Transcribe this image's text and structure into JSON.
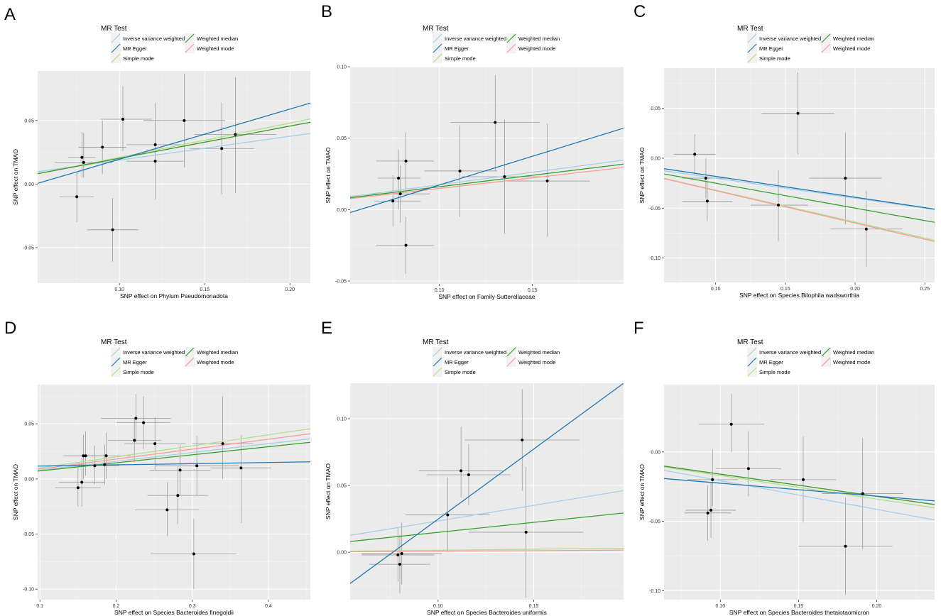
{
  "legend": {
    "title": "MR Test",
    "entries": [
      {
        "name": "Inverse variance weighted",
        "color": "#a6cee3"
      },
      {
        "name": "MR Egger",
        "color": "#1f78b4"
      },
      {
        "name": "Simple mode",
        "color": "#b2df8a"
      },
      {
        "name": "Weighted median",
        "color": "#33a02c"
      },
      {
        "name": "Weighted mode",
        "color": "#fb9a99"
      }
    ]
  },
  "chart_data": [
    {
      "letter": "A",
      "type": "scatter",
      "xlabel": "SNP effect on Phylum Pseudomonadota",
      "ylabel": "SNP effect on TMAO",
      "xlim": [
        0.052,
        0.212
      ],
      "ylim": [
        -0.078,
        0.089
      ],
      "xticks": [
        0.1,
        0.15,
        0.2
      ],
      "xtick_labels": [
        "0.10",
        "0.15",
        "0.20"
      ],
      "yticks": [
        -0.05,
        0.0,
        0.05
      ],
      "ytick_labels": [
        "-0.05",
        "0.00",
        "0.05"
      ],
      "points": [
        {
          "x": 0.075,
          "y": -0.01,
          "xl": 0.065,
          "xh": 0.085,
          "yl": -0.03,
          "yh": 0.01
        },
        {
          "x": 0.078,
          "y": 0.021,
          "xl": 0.07,
          "xh": 0.086,
          "yl": 0.005,
          "yh": 0.041
        },
        {
          "x": 0.079,
          "y": 0.017,
          "xl": 0.062,
          "xh": 0.096,
          "yl": 0.005,
          "yh": 0.04
        },
        {
          "x": 0.09,
          "y": 0.029,
          "xl": 0.076,
          "xh": 0.104,
          "yl": 0.008,
          "yh": 0.05
        },
        {
          "x": 0.096,
          "y": -0.036,
          "xl": 0.081,
          "xh": 0.111,
          "yl": -0.061,
          "yh": -0.011
        },
        {
          "x": 0.102,
          "y": 0.051,
          "xl": 0.089,
          "xh": 0.119,
          "yl": 0.026,
          "yh": 0.077
        },
        {
          "x": 0.121,
          "y": 0.031,
          "xl": 0.104,
          "xh": 0.138,
          "yl": 0.011,
          "yh": 0.064
        },
        {
          "x": 0.121,
          "y": 0.018,
          "xl": 0.104,
          "xh": 0.138,
          "yl": -0.012,
          "yh": 0.048
        },
        {
          "x": 0.138,
          "y": 0.05,
          "xl": 0.114,
          "xh": 0.162,
          "yl": 0.013,
          "yh": 0.087
        },
        {
          "x": 0.16,
          "y": 0.028,
          "xl": 0.141,
          "xh": 0.179,
          "yl": -0.008,
          "yh": 0.064
        },
        {
          "x": 0.168,
          "y": 0.039,
          "xl": 0.144,
          "xh": 0.192,
          "yl": -0.007,
          "yh": 0.084
        }
      ],
      "lines": [
        {
          "method": "Inverse variance weighted",
          "intercept": 0,
          "slope": 0.188
        },
        {
          "method": "MR Egger",
          "intercept": -0.02,
          "slope": 0.395
        },
        {
          "method": "Simple mode",
          "intercept": -0.006,
          "slope": 0.27
        },
        {
          "method": "Weighted median",
          "intercept": -0.005,
          "slope": 0.253
        },
        {
          "method": "Weighted mode",
          "intercept": -0.005,
          "slope": 0.253
        }
      ]
    },
    {
      "letter": "B",
      "type": "scatter",
      "xlabel": "SNP effect on Family Sutterellaceae",
      "ylabel": "SNP effect on TMAO",
      "xlim": [
        0.052,
        0.199
      ],
      "ylim": [
        -0.052,
        0.1
      ],
      "xticks": [
        0.1,
        0.15
      ],
      "xtick_labels": [
        "0.10",
        "0.15"
      ],
      "yticks": [
        -0.05,
        0.0,
        0.05,
        0.1
      ],
      "ytick_labels": [
        "-0.05",
        "0.00",
        "0.05",
        "0.10"
      ],
      "points": [
        {
          "x": 0.075,
          "y": 0.006,
          "xl": 0.065,
          "xh": 0.09,
          "yl": -0.012,
          "yh": 0.024
        },
        {
          "x": 0.078,
          "y": 0.022,
          "xl": 0.067,
          "xh": 0.09,
          "yl": 0.0,
          "yh": 0.042
        },
        {
          "x": 0.079,
          "y": 0.011,
          "xl": 0.063,
          "xh": 0.095,
          "yl": -0.009,
          "yh": 0.031
        },
        {
          "x": 0.082,
          "y": -0.025,
          "xl": 0.066,
          "xh": 0.097,
          "yl": -0.045,
          "yh": -0.005
        },
        {
          "x": 0.082,
          "y": 0.034,
          "xl": 0.066,
          "xh": 0.097,
          "yl": 0.014,
          "yh": 0.054
        },
        {
          "x": 0.111,
          "y": 0.027,
          "xl": 0.092,
          "xh": 0.131,
          "yl": -0.005,
          "yh": 0.059
        },
        {
          "x": 0.13,
          "y": 0.061,
          "xl": 0.106,
          "xh": 0.154,
          "yl": 0.027,
          "yh": 0.094
        },
        {
          "x": 0.135,
          "y": 0.023,
          "xl": 0.112,
          "xh": 0.159,
          "yl": -0.017,
          "yh": 0.063
        },
        {
          "x": 0.158,
          "y": 0.02,
          "xl": 0.135,
          "xh": 0.181,
          "yl": -0.019,
          "yh": 0.06
        }
      ],
      "lines": [
        {
          "method": "Inverse variance weighted",
          "intercept": 0,
          "slope": 0.174
        },
        {
          "method": "MR Egger",
          "intercept": -0.023,
          "slope": 0.402
        },
        {
          "method": "Simple mode",
          "intercept": 0,
          "slope": 0.16
        },
        {
          "method": "Weighted median",
          "intercept": 0,
          "slope": 0.16
        },
        {
          "method": "Weighted mode",
          "intercept": 0,
          "slope": 0.148
        }
      ]
    },
    {
      "letter": "C",
      "type": "scatter",
      "xlabel": "SNP effect on Species Bilophila wadsworthia",
      "ylabel": "SNP effect on TMAO",
      "xlim": [
        0.063,
        0.257
      ],
      "ylim": [
        -0.1245,
        0.0903
      ],
      "xticks": [
        0.1,
        0.15,
        0.2,
        0.25
      ],
      "xtick_labels": [
        "0.10",
        "0.15",
        "0.20",
        "0.25"
      ],
      "yticks": [
        -0.1,
        -0.05,
        0.0,
        0.05
      ],
      "ytick_labels": [
        "-0.10",
        "-0.05",
        "0.00",
        "0.05"
      ],
      "points": [
        {
          "x": 0.085,
          "y": 0.004,
          "xl": 0.07,
          "xh": 0.1,
          "yl": -0.017,
          "yh": 0.024
        },
        {
          "x": 0.093,
          "y": -0.02,
          "xl": 0.076,
          "xh": 0.11,
          "yl": -0.04,
          "yh": 0.0
        },
        {
          "x": 0.094,
          "y": -0.043,
          "xl": 0.076,
          "xh": 0.112,
          "yl": -0.063,
          "yh": -0.023
        },
        {
          "x": 0.145,
          "y": -0.047,
          "xl": 0.125,
          "xh": 0.166,
          "yl": -0.083,
          "yh": -0.012
        },
        {
          "x": 0.159,
          "y": 0.045,
          "xl": 0.133,
          "xh": 0.185,
          "yl": 0.004,
          "yh": 0.086
        },
        {
          "x": 0.193,
          "y": -0.02,
          "xl": 0.167,
          "xh": 0.219,
          "yl": -0.066,
          "yh": 0.026
        },
        {
          "x": 0.208,
          "y": -0.071,
          "xl": 0.182,
          "xh": 0.234,
          "yl": -0.109,
          "yh": -0.033
        }
      ],
      "lines": [
        {
          "method": "Inverse variance weighted",
          "intercept": 0,
          "slope": -0.2
        },
        {
          "method": "MR Egger",
          "intercept": 0.0027,
          "slope": -0.209
        },
        {
          "method": "Simple mode",
          "intercept": 0,
          "slope": -0.32
        },
        {
          "method": "Weighted median",
          "intercept": 0,
          "slope": -0.25
        },
        {
          "method": "Weighted mode",
          "intercept": 0,
          "slope": -0.325
        }
      ]
    },
    {
      "letter": "D",
      "type": "scatter",
      "xlabel": "SNP effect on Species Bacteroides finegoldii",
      "ylabel": "SNP effect on TMAO",
      "xlim": [
        0.097,
        0.455
      ],
      "ylim": [
        -0.1095,
        0.0855
      ],
      "xticks": [
        0.1,
        0.2,
        0.3,
        0.4
      ],
      "xtick_labels": [
        "0.1",
        "0.2",
        "0.3",
        "0.4"
      ],
      "yticks": [
        -0.1,
        -0.05,
        0.0,
        0.05
      ],
      "ytick_labels": [
        "-0.10",
        "-0.05",
        "0.00",
        "0.05"
      ],
      "points": [
        {
          "x": 0.15,
          "y": -0.008,
          "xl": 0.12,
          "xh": 0.18,
          "yl": -0.025,
          "yh": 0.01
        },
        {
          "x": 0.155,
          "y": -0.003,
          "xl": 0.125,
          "xh": 0.185,
          "yl": -0.025,
          "yh": 0.019
        },
        {
          "x": 0.157,
          "y": 0.021,
          "xl": 0.13,
          "xh": 0.184,
          "yl": 0.0,
          "yh": 0.04
        },
        {
          "x": 0.16,
          "y": 0.021,
          "xl": 0.132,
          "xh": 0.188,
          "yl": 0.003,
          "yh": 0.043
        },
        {
          "x": 0.172,
          "y": 0.012,
          "xl": 0.14,
          "xh": 0.204,
          "yl": -0.005,
          "yh": 0.03
        },
        {
          "x": 0.185,
          "y": 0.013,
          "xl": 0.15,
          "xh": 0.22,
          "yl": -0.005,
          "yh": 0.031
        },
        {
          "x": 0.187,
          "y": 0.021,
          "xl": 0.155,
          "xh": 0.219,
          "yl": 0.0,
          "yh": 0.042
        },
        {
          "x": 0.224,
          "y": 0.035,
          "xl": 0.189,
          "xh": 0.259,
          "yl": 0.015,
          "yh": 0.055
        },
        {
          "x": 0.226,
          "y": 0.055,
          "xl": 0.18,
          "xh": 0.272,
          "yl": 0.033,
          "yh": 0.077
        },
        {
          "x": 0.236,
          "y": 0.051,
          "xl": 0.201,
          "xh": 0.271,
          "yl": 0.027,
          "yh": 0.075
        },
        {
          "x": 0.251,
          "y": 0.032,
          "xl": 0.211,
          "xh": 0.291,
          "yl": 0.008,
          "yh": 0.056
        },
        {
          "x": 0.267,
          "y": -0.028,
          "xl": 0.225,
          "xh": 0.309,
          "yl": -0.052,
          "yh": -0.003
        },
        {
          "x": 0.281,
          "y": -0.015,
          "xl": 0.241,
          "xh": 0.321,
          "yl": -0.041,
          "yh": 0.011
        },
        {
          "x": 0.284,
          "y": 0.008,
          "xl": 0.244,
          "xh": 0.324,
          "yl": -0.015,
          "yh": 0.031
        },
        {
          "x": 0.302,
          "y": -0.068,
          "xl": 0.245,
          "xh": 0.358,
          "yl": -0.1,
          "yh": -0.036
        },
        {
          "x": 0.306,
          "y": 0.012,
          "xl": 0.251,
          "xh": 0.361,
          "yl": -0.015,
          "yh": 0.039
        },
        {
          "x": 0.34,
          "y": 0.032,
          "xl": 0.3,
          "xh": 0.38,
          "yl": 0.0,
          "yh": 0.075
        },
        {
          "x": 0.364,
          "y": 0.01,
          "xl": 0.324,
          "xh": 0.404,
          "yl": -0.04,
          "yh": 0.04
        }
      ],
      "lines": [
        {
          "method": "Inverse variance weighted",
          "intercept": 0,
          "slope": 0.08
        },
        {
          "method": "MR Egger",
          "intercept": 0.0106,
          "slope": 0.0108
        },
        {
          "method": "Simple mode",
          "intercept": 0,
          "slope": 0.1
        },
        {
          "method": "Weighted median",
          "intercept": 0,
          "slope": 0.073
        },
        {
          "method": "Weighted mode",
          "intercept": 0,
          "slope": 0.09
        }
      ]
    },
    {
      "letter": "E",
      "type": "scatter",
      "xlabel": "SNP effect on Species Bacteroides uniformis",
      "ylabel": "SNP effect on TMAO",
      "xlim": [
        0.054,
        0.197
      ],
      "ylim": [
        -0.0355,
        0.1265
      ],
      "xticks": [
        0.1,
        0.15
      ],
      "xtick_labels": [
        "0.10",
        "0.15"
      ],
      "yticks": [
        0.0,
        0.05,
        0.1
      ],
      "ytick_labels": [
        "0.00",
        "0.05",
        "0.10"
      ],
      "points": [
        {
          "x": 0.079,
          "y": -0.002,
          "xl": 0.06,
          "xh": 0.098,
          "yl": -0.022,
          "yh": 0.018
        },
        {
          "x": 0.08,
          "y": -0.009,
          "xl": 0.064,
          "xh": 0.096,
          "yl": -0.031,
          "yh": 0.013
        },
        {
          "x": 0.081,
          "y": -0.001,
          "xl": 0.06,
          "xh": 0.102,
          "yl": -0.024,
          "yh": 0.022
        },
        {
          "x": 0.105,
          "y": 0.028,
          "xl": 0.083,
          "xh": 0.127,
          "yl": 0.0,
          "yh": 0.056
        },
        {
          "x": 0.112,
          "y": 0.061,
          "xl": 0.09,
          "xh": 0.134,
          "yl": 0.041,
          "yh": 0.094
        },
        {
          "x": 0.116,
          "y": 0.058,
          "xl": 0.094,
          "xh": 0.138,
          "yl": 0.035,
          "yh": 0.081
        },
        {
          "x": 0.144,
          "y": 0.084,
          "xl": 0.114,
          "xh": 0.174,
          "yl": 0.046,
          "yh": 0.122
        },
        {
          "x": 0.146,
          "y": 0.015,
          "xl": 0.116,
          "xh": 0.176,
          "yl": -0.034,
          "yh": 0.064
        }
      ],
      "lines": [
        {
          "method": "Inverse variance weighted",
          "intercept": 0,
          "slope": 0.234
        },
        {
          "method": "MR Egger",
          "intercept": -0.08,
          "slope": 1.048
        },
        {
          "method": "Simple mode",
          "intercept": 0,
          "slope": 0.015
        },
        {
          "method": "Weighted median",
          "intercept": 0,
          "slope": 0.149
        },
        {
          "method": "Weighted mode",
          "intercept": 0,
          "slope": 0.008
        }
      ]
    },
    {
      "letter": "F",
      "type": "scatter",
      "xlabel": "SNP effect on Species Bacteroides thetaiotaomicron",
      "ylabel": "SNP effect on TMAO",
      "xlim": [
        0.064,
        0.237
      ],
      "ylim": [
        -0.1065,
        0.0485
      ],
      "xticks": [
        0.1,
        0.15,
        0.2
      ],
      "xtick_labels": [
        "0.10",
        "0.15",
        "0.20"
      ],
      "yticks": [
        -0.1,
        -0.05,
        0.0
      ],
      "ytick_labels": [
        "-0.10",
        "-0.05",
        "0.00"
      ],
      "points": [
        {
          "x": 0.092,
          "y": -0.044,
          "xl": 0.077,
          "xh": 0.107,
          "yl": -0.064,
          "yh": -0.024
        },
        {
          "x": 0.094,
          "y": -0.042,
          "xl": 0.078,
          "xh": 0.11,
          "yl": -0.062,
          "yh": -0.022
        },
        {
          "x": 0.095,
          "y": -0.02,
          "xl": 0.079,
          "xh": 0.111,
          "yl": -0.039,
          "yh": 0.002
        },
        {
          "x": 0.107,
          "y": 0.02,
          "xl": 0.086,
          "xh": 0.128,
          "yl": 0.0,
          "yh": 0.042
        },
        {
          "x": 0.118,
          "y": -0.012,
          "xl": 0.097,
          "xh": 0.139,
          "yl": -0.032,
          "yh": 0.015
        },
        {
          "x": 0.153,
          "y": -0.02,
          "xl": 0.132,
          "xh": 0.174,
          "yl": -0.051,
          "yh": 0.011
        },
        {
          "x": 0.18,
          "y": -0.068,
          "xl": 0.15,
          "xh": 0.21,
          "yl": -0.103,
          "yh": -0.033
        },
        {
          "x": 0.191,
          "y": -0.03,
          "xl": 0.165,
          "xh": 0.217,
          "yl": -0.07,
          "yh": 0.01
        }
      ],
      "lines": [
        {
          "method": "Inverse variance weighted",
          "intercept": 0,
          "slope": -0.207
        },
        {
          "method": "MR Egger",
          "intercept": -0.0132,
          "slope": -0.0933
        },
        {
          "method": "Simple mode",
          "intercept": 0,
          "slope": -0.17
        },
        {
          "method": "Weighted median",
          "intercept": 0,
          "slope": -0.16
        },
        {
          "method": "Weighted mode",
          "intercept": 0,
          "slope": -0.16
        }
      ]
    }
  ]
}
